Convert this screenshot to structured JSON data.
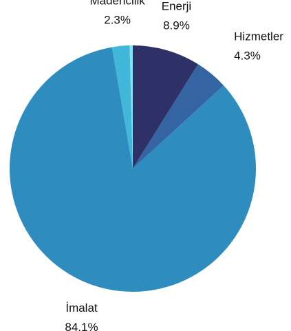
{
  "chart_data": {
    "type": "pie",
    "categories": [
      "Enerji",
      "Hizmetler",
      "İmalat",
      "Madencilik",
      null
    ],
    "values": [
      8.9,
      4.3,
      84.1,
      2.3,
      0.4
    ],
    "value_labels": [
      "8.9%",
      "4.3%",
      "84.1%",
      "2.3%",
      null
    ],
    "colors": [
      "#2e3168",
      "#3464a2",
      "#2e8cbf",
      "#41b7d9",
      "#84e3f0"
    ]
  }
}
